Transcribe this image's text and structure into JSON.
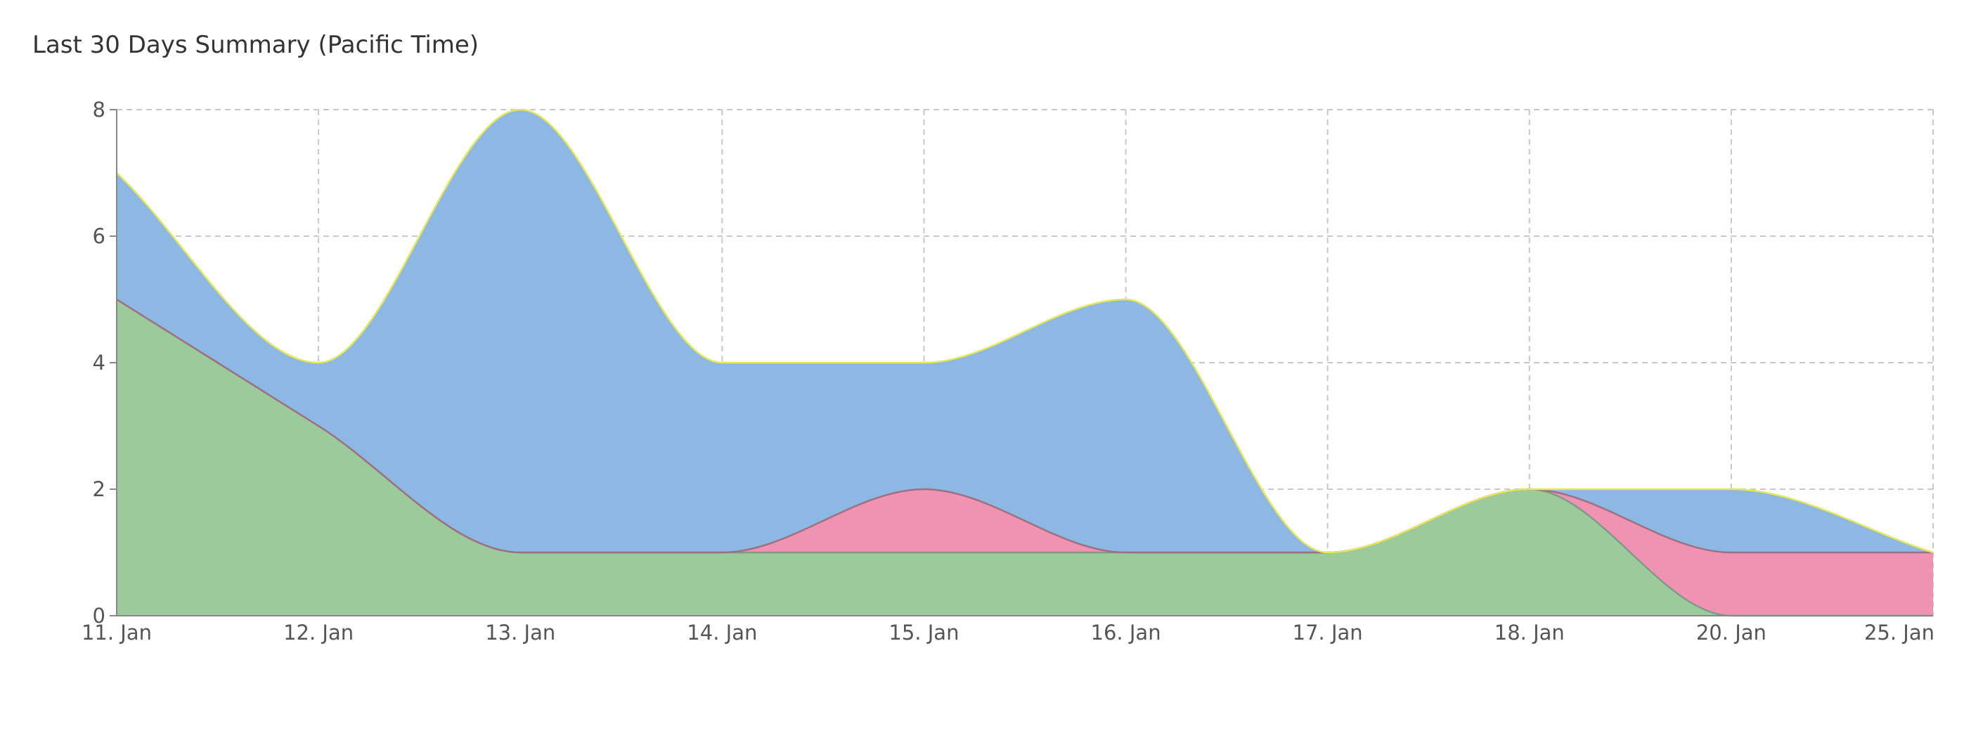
{
  "title": "Last 30 Days Summary (Pacific Time)",
  "chart_data": {
    "type": "area",
    "stacked": true,
    "smooth": true,
    "title": "Last 30 Days Summary (Pacific Time)",
    "xlabel": "",
    "ylabel": "",
    "categories": [
      "11. Jan",
      "12. Jan",
      "13. Jan",
      "14. Jan",
      "15. Jan",
      "16. Jan",
      "17. Jan",
      "18. Jan",
      "20. Jan",
      "25. Jan"
    ],
    "ylim": [
      0,
      8
    ],
    "yticks": [
      0,
      2,
      4,
      6,
      8
    ],
    "grid": true,
    "legend": "none",
    "series": [
      {
        "values": [
          5,
          3,
          1,
          1,
          1,
          1,
          1,
          2,
          0,
          0
        ],
        "color": "#9bcb9c",
        "edge": "#7f9a86"
      },
      {
        "values": [
          0,
          0,
          0,
          0,
          1,
          0,
          0,
          0,
          1,
          1
        ],
        "color": "#f093b3",
        "edge": "#a07080"
      },
      {
        "values": [
          2,
          1,
          7,
          3,
          2,
          4,
          0,
          0,
          1,
          0
        ],
        "color": "#8cb8e3",
        "edge": "#e6e65a"
      }
    ]
  }
}
